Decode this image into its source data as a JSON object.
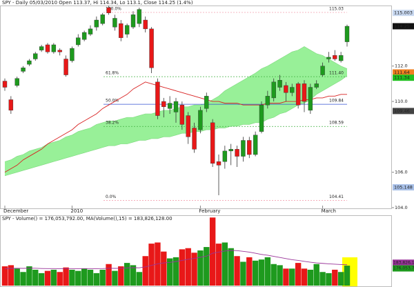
{
  "chart_data": [
    {
      "type": "candlestick",
      "title": "SPY - Daily 05/03/2010 Open 113.37, Hi 114.34, Lo 113.1, Close 114.25 (1.4%)",
      "categories": [
        "December",
        null,
        null,
        null,
        null,
        null,
        null,
        null,
        null,
        null,
        null,
        "2010",
        null,
        null,
        null,
        null,
        null,
        null,
        null,
        null,
        null,
        null,
        null,
        null,
        null,
        null,
        null,
        null,
        null,
        null,
        null,
        null,
        "February",
        null,
        null,
        null,
        null,
        null,
        null,
        null,
        null,
        null,
        null,
        null,
        null,
        null,
        null,
        null,
        null,
        null,
        null,
        null,
        "March",
        null,
        null,
        null,
        null
      ],
      "open": [
        111.15,
        110.1,
        110.9,
        111.7,
        112.1,
        112.4,
        112.9,
        113.2,
        112.8,
        112.9,
        112.4,
        112.3,
        113.2,
        113.5,
        113.8,
        114.2,
        114.4,
        115.3,
        114.2,
        114.4,
        113.8,
        114.2,
        114.4,
        114.6,
        114.1,
        111.1,
        110.0,
        109.6,
        109.4,
        109.8,
        109.2,
        108.5,
        108.4,
        109.6,
        108.8,
        106.6,
        106.6,
        107.2,
        107.3,
        106.9,
        107.8,
        107.0,
        108.3,
        109.8,
        110.2,
        110.8,
        110.9,
        110.5,
        111.0,
        111.0,
        109.5,
        110.8,
        111.5,
        112.4,
        112.6,
        112.3,
        113.37
      ],
      "high": [
        111.3,
        110.3,
        111.4,
        112.0,
        112.4,
        112.8,
        113.2,
        113.3,
        113.3,
        113.0,
        112.6,
        113.1,
        113.8,
        114.0,
        114.3,
        114.8,
        115.0,
        115.4,
        114.9,
        114.6,
        114.4,
        115.1,
        115.3,
        114.8,
        114.2,
        111.3,
        110.2,
        110.3,
        110.2,
        110.0,
        109.4,
        108.8,
        109.7,
        110.5,
        109.0,
        107.0,
        107.5,
        107.6,
        107.5,
        108.0,
        108.0,
        108.3,
        110.0,
        110.6,
        111.3,
        111.5,
        111.1,
        111.0,
        111.1,
        111.2,
        111.0,
        111.2,
        112.2,
        112.8,
        112.9,
        112.8,
        114.34
      ],
      "low": [
        110.6,
        109.3,
        110.8,
        111.6,
        112.0,
        112.3,
        112.8,
        112.7,
        112.7,
        112.6,
        111.4,
        112.2,
        113.1,
        113.4,
        113.7,
        114.0,
        114.3,
        114.9,
        114.0,
        113.4,
        113.6,
        114.1,
        114.2,
        113.9,
        111.6,
        109.0,
        109.1,
        109.3,
        108.8,
        108.4,
        107.6,
        107.1,
        108.2,
        109.4,
        106.3,
        104.7,
        106.2,
        106.4,
        106.3,
        106.6,
        106.8,
        106.9,
        108.2,
        109.6,
        110.0,
        110.6,
        110.0,
        110.3,
        109.6,
        109.4,
        109.3,
        110.7,
        111.4,
        112.2,
        112.3,
        112.2,
        113.1
      ],
      "close": [
        110.8,
        109.5,
        111.3,
        111.9,
        112.3,
        112.7,
        113.1,
        112.8,
        113.2,
        112.8,
        111.5,
        113.0,
        113.6,
        113.9,
        114.1,
        114.6,
        114.9,
        115.0,
        114.7,
        113.6,
        114.3,
        114.9,
        115.2,
        114.1,
        111.9,
        109.2,
        109.7,
        109.9,
        110.0,
        108.7,
        108.0,
        107.3,
        109.5,
        110.3,
        106.5,
        106.4,
        107.2,
        107.3,
        106.9,
        107.8,
        107.0,
        108.1,
        109.8,
        110.3,
        111.1,
        111.2,
        110.5,
        110.8,
        109.8,
        110.0,
        110.8,
        111.0,
        112.0,
        112.5,
        112.4,
        112.6,
        114.25
      ],
      "up_color": "#1e9a1e",
      "down_color": "#e81818",
      "ylim": [
        103.96,
        115.42
      ],
      "yticks": [
        {
          "value": 104,
          "label": "104.0"
        },
        {
          "value": 106,
          "label": "106.0"
        },
        {
          "value": 110,
          "label": "110.0"
        },
        {
          "value": 112,
          "label": "112.0"
        }
      ],
      "cloud": {
        "color": "#98f098",
        "upper": [
          106.6,
          106.7,
          106.9,
          107.0,
          107.2,
          107.3,
          107.4,
          107.6,
          107.7,
          107.8,
          108.0,
          108.1,
          108.3,
          108.4,
          108.5,
          108.7,
          108.8,
          108.9,
          108.9,
          109.0,
          109.1,
          109.1,
          109.2,
          109.3,
          109.3,
          109.4,
          109.5,
          109.5,
          109.6,
          109.7,
          109.7,
          109.8,
          109.8,
          109.9,
          110.1,
          110.3,
          110.6,
          110.8,
          111.0,
          111.2,
          111.4,
          111.6,
          111.85,
          112.0,
          112.2,
          112.4,
          112.6,
          112.8,
          112.9,
          113.1,
          112.9,
          112.7,
          112.6,
          112.4,
          112.2,
          112.0,
          111.85
        ],
        "lower": [
          105.8,
          105.9,
          106.0,
          106.1,
          106.2,
          106.3,
          106.4,
          106.5,
          106.6,
          106.7,
          106.8,
          106.9,
          107.0,
          107.1,
          107.2,
          107.3,
          107.4,
          107.5,
          107.5,
          107.6,
          107.6,
          107.7,
          107.8,
          107.8,
          107.9,
          107.9,
          108.0,
          108.0,
          108.1,
          108.2,
          108.2,
          108.3,
          108.3,
          108.4,
          108.4,
          108.5,
          108.5,
          108.6,
          108.6,
          108.7,
          108.7,
          108.8,
          108.8,
          109.0,
          109.1,
          109.3,
          109.4,
          109.6,
          109.8,
          109.9,
          110.1,
          110.4,
          110.6,
          110.8,
          111.0,
          111.2,
          111.45
        ]
      },
      "moving_average": {
        "color": "#d82020",
        "values": [
          106.0,
          106.2,
          106.4,
          106.7,
          106.9,
          107.1,
          107.3,
          107.6,
          107.8,
          108.0,
          108.2,
          108.4,
          108.7,
          108.9,
          109.1,
          109.3,
          109.6,
          109.8,
          110.0,
          110.2,
          110.4,
          110.7,
          110.9,
          111.1,
          111.0,
          110.9,
          110.8,
          110.7,
          110.6,
          110.5,
          110.4,
          110.3,
          110.2,
          110.1,
          110.0,
          110.0,
          109.9,
          109.9,
          109.9,
          109.8,
          109.8,
          109.8,
          109.8,
          109.9,
          109.9,
          109.9,
          110.0,
          110.0,
          110.0,
          110.1,
          110.1,
          110.2,
          110.2,
          110.3,
          110.3,
          110.4,
          110.4
        ]
      },
      "fib_levels": [
        {
          "label": "100.0%",
          "value": 115.03,
          "value_label": "115.03",
          "color": "#f4a0b0"
        },
        {
          "label": "61.8%",
          "value": 111.4,
          "value_label": "111.40",
          "color": "#40b040"
        },
        {
          "label": "50.0%",
          "value": 109.84,
          "value_label": "109.84",
          "color": "#3050d0"
        },
        {
          "label": "38.2%",
          "value": 108.59,
          "value_label": "108.59",
          "color": "#40b040"
        },
        {
          "label": "0.0%",
          "value": 104.41,
          "value_label": "104.41",
          "color": "#f4a0b0"
        }
      ],
      "price_labels": [
        {
          "value": 115.003,
          "label": "115.003",
          "color": "#c8d8f0",
          "text_color": "#223"
        },
        {
          "value": 114.25,
          "label": "114.25",
          "color": "#111111",
          "text_color": "#fff"
        },
        {
          "value": 111.64,
          "label": "111.64",
          "color": "#f08020",
          "text_color": "#111"
        },
        {
          "value": 111.34,
          "label": "111.34",
          "color": "#20c020",
          "text_color": "#111"
        },
        {
          "value": 109.46,
          "label": "109.46",
          "color": "#444444",
          "text_color": "#fff"
        },
        {
          "value": 105.148,
          "label": "105.148",
          "color": "#a8c0e8",
          "text_color": "#112"
        }
      ]
    },
    {
      "type": "bar",
      "title": "SPY - Volume() = 176,053,792.00, MA(Volume(),15) = 183,826,128.00",
      "values": [
        170000000,
        180000000,
        150000000,
        120000000,
        170000000,
        140000000,
        110000000,
        130000000,
        140000000,
        120000000,
        160000000,
        140000000,
        130000000,
        150000000,
        140000000,
        110000000,
        140000000,
        190000000,
        130000000,
        170000000,
        200000000,
        180000000,
        120000000,
        260000000,
        370000000,
        380000000,
        300000000,
        240000000,
        250000000,
        320000000,
        330000000,
        290000000,
        310000000,
        340000000,
        600000000,
        370000000,
        380000000,
        330000000,
        260000000,
        210000000,
        250000000,
        220000000,
        230000000,
        250000000,
        190000000,
        180000000,
        150000000,
        150000000,
        200000000,
        150000000,
        140000000,
        190000000,
        120000000,
        110000000,
        140000000,
        120000000,
        176053792
      ],
      "ma": {
        "color": "#993399",
        "values": [
          150000000,
          152000000,
          153000000,
          152000000,
          154000000,
          153000000,
          151000000,
          150000000,
          150000000,
          149000000,
          150000000,
          150000000,
          149000000,
          150000000,
          150000000,
          149000000,
          150000000,
          153000000,
          152000000,
          153000000,
          156000000,
          158000000,
          157000000,
          165000000,
          178000000,
          192000000,
          200000000,
          205000000,
          212000000,
          222000000,
          232000000,
          240000000,
          250000000,
          260000000,
          285000000,
          295000000,
          305000000,
          310000000,
          308000000,
          302000000,
          295000000,
          285000000,
          275000000,
          268000000,
          258000000,
          248000000,
          238000000,
          228000000,
          222000000,
          214000000,
          206000000,
          200000000,
          196000000,
          192000000,
          189000000,
          186000000,
          183826128
        ]
      },
      "ylim": [
        0,
        620000000
      ],
      "price_labels": [
        {
          "value": 183826128,
          "label": "183,826,1",
          "color": "#993399",
          "text_color": "#fff"
        },
        {
          "value": 176053792,
          "label": "176,053,7",
          "color": "#1e9a1e",
          "text_color": "#fff"
        }
      ]
    }
  ]
}
